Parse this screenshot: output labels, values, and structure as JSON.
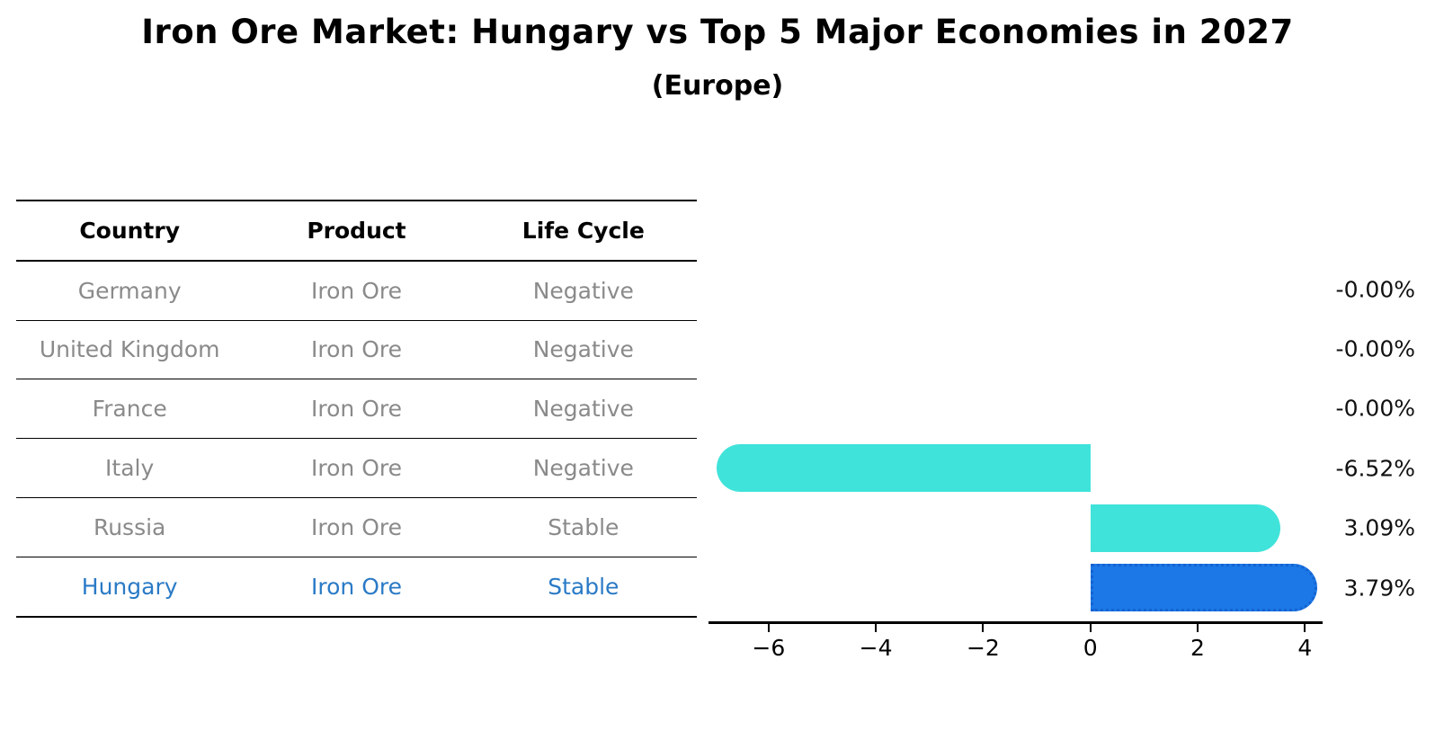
{
  "title": "Iron Ore Market: Hungary vs Top 5 Major Economies in 2027",
  "subtitle": "(Europe)",
  "table": {
    "headers": [
      "Country",
      "Product",
      "Life Cycle"
    ],
    "rows": [
      {
        "country": "Germany",
        "product": "Iron Ore",
        "life_cycle": "Negative",
        "highlighted": false
      },
      {
        "country": "United Kingdom",
        "product": "Iron Ore",
        "life_cycle": "Negative",
        "highlighted": false
      },
      {
        "country": "France",
        "product": "Iron Ore",
        "life_cycle": "Negative",
        "highlighted": false
      },
      {
        "country": "Italy",
        "product": "Iron Ore",
        "life_cycle": "Negative",
        "highlighted": false
      },
      {
        "country": "Russia",
        "product": "Iron Ore",
        "life_cycle": "Stable",
        "highlighted": false
      },
      {
        "country": "Hungary",
        "product": "Iron Ore",
        "life_cycle": "Stable",
        "highlighted": true
      }
    ]
  },
  "chart_data": {
    "type": "bar",
    "orientation": "horizontal",
    "title": "Iron Ore Market: Hungary vs Top 5 Major Economies in 2027 (Europe)",
    "categories": [
      "Germany",
      "United Kingdom",
      "France",
      "Italy",
      "Russia",
      "Hungary"
    ],
    "values": [
      -0.0,
      -0.0,
      -0.0,
      -6.52,
      3.09,
      3.79
    ],
    "value_labels": [
      "-0.00%",
      "-0.00%",
      "-0.00%",
      "-6.52%",
      "3.09%",
      "3.79%"
    ],
    "unit": "percent",
    "x_ticks": [
      -6,
      -4,
      -2,
      0,
      2,
      4
    ],
    "x_tick_labels": [
      "−6",
      "−4",
      "−2",
      "0",
      "2",
      "4"
    ],
    "xlim": [
      -7.12,
      4.33
    ],
    "grid": false,
    "legend": false,
    "highlight_category": "Hungary"
  },
  "colors": {
    "background": "#ffffff",
    "title_text": "#000000",
    "table_header_text": "#000000",
    "table_body_text": "#8a8a8a",
    "highlight_text": "#2a7ac6",
    "bar_default": "#40e3da",
    "bar_highlight": "#1b78e6",
    "bar_highlight_border": "#1563d2",
    "axis": "#000000"
  }
}
